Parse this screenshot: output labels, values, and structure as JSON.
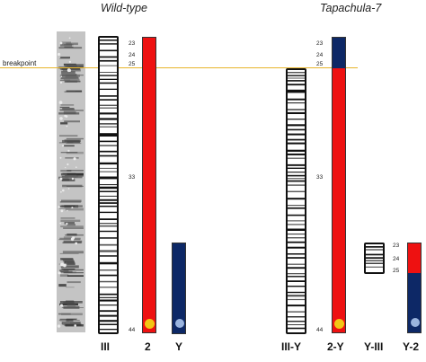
{
  "headers": {
    "wild_type": "Wild-type",
    "tapachula": "Tapachula-7"
  },
  "breakpoint_label": "breakpoint",
  "colors": {
    "chr2": "#ee1111",
    "y": "#0d2866",
    "yellow_dot": "#f2c615",
    "blue_dot": "#9ab4de",
    "breakpoint_line": "#e8b52a"
  },
  "labels": {
    "wt_iii": "III",
    "wt_2": "2",
    "wt_y": "Y",
    "tap_iiiy": "III-Y",
    "tap_2y": "2-Y",
    "tap_yiii": "Y-III",
    "tap_y2": "Y-2"
  },
  "ticks": {
    "wt_23": "23",
    "wt_24": "24",
    "wt_25": "25",
    "wt_33": "33",
    "wt_44": "44",
    "tap_23": "23",
    "tap_24": "24",
    "tap_25": "25",
    "tap_33": "33",
    "tap_44": "44",
    "y_23": "23",
    "y_24": "24",
    "y_25": "25"
  }
}
